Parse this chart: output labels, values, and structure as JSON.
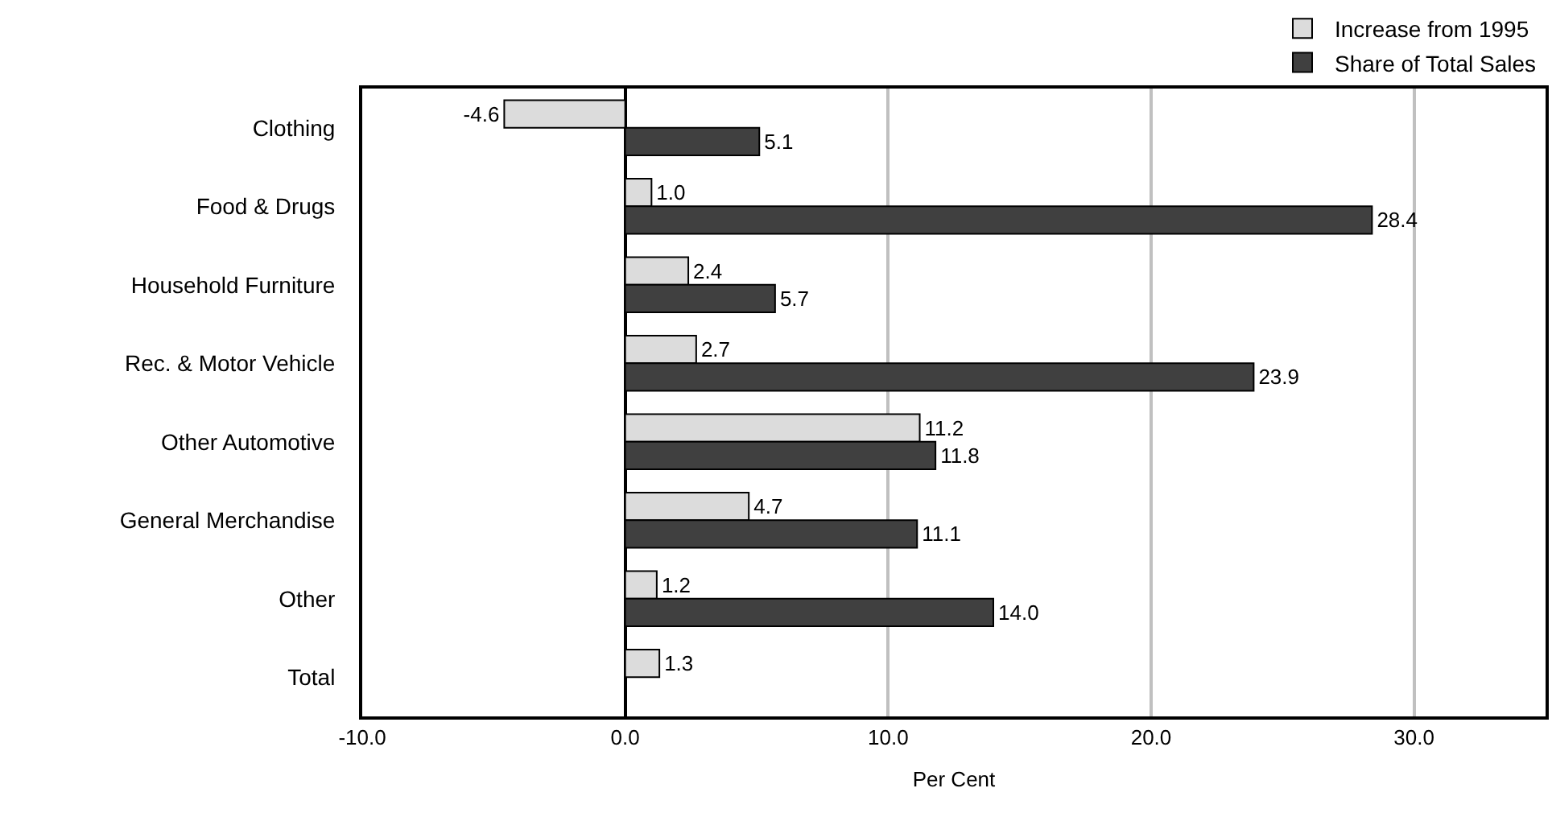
{
  "chart_data": {
    "type": "bar",
    "orientation": "horizontal",
    "xlabel": "Per Cent",
    "categories": [
      "Clothing",
      "Food & Drugs",
      "Household Furniture",
      "Rec. & Motor Vehicle",
      "Other Automotive",
      "General Merchandise",
      "Other",
      "Total"
    ],
    "series": [
      {
        "name": "Increase from 1995",
        "color": "#dcdcdc",
        "values": [
          -4.6,
          1.0,
          2.4,
          2.7,
          11.2,
          4.7,
          1.2,
          1.3
        ],
        "value_labels": [
          "-4.6",
          "1.0",
          "2.4",
          "2.7",
          "11.2",
          "4.7",
          "1.2",
          "1.3"
        ]
      },
      {
        "name": "Share of Total Sales",
        "color": "#404040",
        "values": [
          5.1,
          28.4,
          5.7,
          23.9,
          11.8,
          11.1,
          14.0,
          null
        ],
        "value_labels": [
          "5.1",
          "28.4",
          "5.7",
          "23.9",
          "11.8",
          "11.1",
          "14.0",
          null
        ]
      }
    ],
    "xlim": [
      -10,
      35
    ],
    "xticks": [
      {
        "value": -10,
        "label": "-10.0"
      },
      {
        "value": 0,
        "label": "0.0"
      },
      {
        "value": 10,
        "label": "10.0"
      },
      {
        "value": 20,
        "label": "20.0"
      },
      {
        "value": 30,
        "label": "30.0"
      }
    ],
    "grid": "x",
    "legend": "top right"
  }
}
